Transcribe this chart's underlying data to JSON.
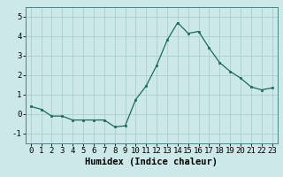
{
  "xlabel": "Humidex (Indice chaleur)",
  "ylabel": "",
  "x": [
    0,
    1,
    2,
    3,
    4,
    5,
    6,
    7,
    8,
    9,
    10,
    11,
    12,
    13,
    14,
    15,
    16,
    17,
    18,
    19,
    20,
    21,
    22,
    23
  ],
  "y": [
    0.4,
    0.25,
    -0.1,
    -0.1,
    -0.3,
    -0.3,
    -0.3,
    -0.3,
    -0.65,
    -0.6,
    0.75,
    1.45,
    2.5,
    3.8,
    4.7,
    4.15,
    4.25,
    3.4,
    2.65,
    2.2,
    1.85,
    1.4,
    1.25,
    1.35
  ],
  "line_color": "#1a6b5a",
  "marker": "s",
  "marker_size": 2.0,
  "bg_color": "#cce8e8",
  "grid_color": "#aacece",
  "ylim": [
    -1.5,
    5.5
  ],
  "xlim": [
    -0.5,
    23.5
  ],
  "yticks": [
    -1,
    0,
    1,
    2,
    3,
    4,
    5
  ],
  "xticks": [
    0,
    1,
    2,
    3,
    4,
    5,
    6,
    7,
    8,
    9,
    10,
    11,
    12,
    13,
    14,
    15,
    16,
    17,
    18,
    19,
    20,
    21,
    22,
    23
  ],
  "xlabel_fontsize": 7.5,
  "tick_fontsize": 6.5
}
